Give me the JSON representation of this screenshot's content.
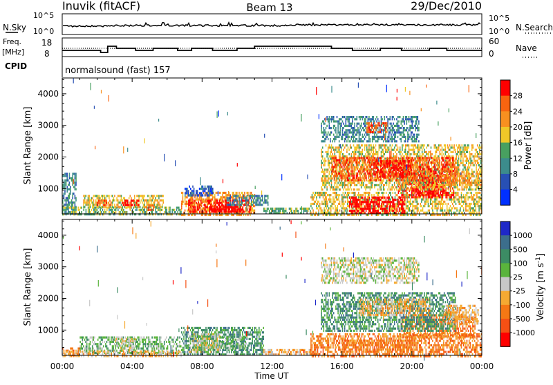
{
  "header": {
    "station": "Inuvik (fitACF)",
    "beam": "Beam 13",
    "date": "29/Dec/2010"
  },
  "sky_panel": {
    "left_label": "N.Sky",
    "right_label": "N.Search",
    "left_ticks": [
      "10^5",
      "10^0"
    ],
    "right_ticks": [
      "10^5",
      "10^0"
    ]
  },
  "freq_panel": {
    "left_label_line1": "Freq.",
    "left_label_line2": "[MHz]",
    "right_label": "Nave",
    "left_ticks": [
      "18",
      "8"
    ],
    "right_ticks": [
      "60",
      "0"
    ]
  },
  "cpid": {
    "label": "CPID",
    "program": "normalsound (fast) 157"
  },
  "chart_data": [
    {
      "type": "heatmap",
      "name": "power",
      "ylabel": "Slant Range [km]",
      "ylim": [
        200,
        4500
      ],
      "yticks": [
        "1000",
        "2000",
        "3000",
        "4000"
      ],
      "xlim": [
        0,
        24
      ],
      "xticks": [
        "00:00",
        "04:00",
        "08:00",
        "12:00",
        "16:00",
        "20:00",
        "00:00"
      ],
      "xlabel": "Time UT",
      "colorbar": {
        "label": "Power [dB]",
        "ticks": [
          "28",
          "24",
          "20",
          "16",
          "12",
          "8",
          "4"
        ],
        "colors": [
          "#ff0000",
          "#f86410",
          "#f89020",
          "#f0c828",
          "#48a060",
          "#3c8c8c",
          "#2850b4",
          "#0030ff"
        ]
      },
      "regions": [
        {
          "t0": 0.0,
          "t1": 0.8,
          "r0": 200,
          "r1": 1500,
          "level": 2
        },
        {
          "t0": 0.0,
          "t1": 6.8,
          "r0": 200,
          "r1": 430,
          "level": 3
        },
        {
          "t0": 1.2,
          "t1": 5.8,
          "r0": 430,
          "r1": 800,
          "level": 4
        },
        {
          "t0": 2.0,
          "t1": 2.8,
          "r0": 450,
          "r1": 650,
          "level": 6
        },
        {
          "t0": 3.4,
          "t1": 4.4,
          "r0": 450,
          "r1": 650,
          "level": 7
        },
        {
          "t0": 4.8,
          "t1": 5.2,
          "r0": 300,
          "r1": 500,
          "level": 6
        },
        {
          "t0": 6.8,
          "t1": 11.0,
          "r0": 200,
          "r1": 900,
          "level": 5
        },
        {
          "t0": 7.2,
          "t1": 10.8,
          "r0": 250,
          "r1": 650,
          "level": 7
        },
        {
          "t0": 8.4,
          "t1": 10.2,
          "r0": 250,
          "r1": 450,
          "level": 8
        },
        {
          "t0": 7.0,
          "t1": 8.6,
          "r0": 800,
          "r1": 1100,
          "level": 1
        },
        {
          "t0": 9.4,
          "t1": 11.8,
          "r0": 500,
          "r1": 800,
          "level": 2
        },
        {
          "t0": 11.5,
          "t1": 14.2,
          "r0": 200,
          "r1": 400,
          "level": 3
        },
        {
          "t0": 14.2,
          "t1": 24.0,
          "r0": 200,
          "r1": 900,
          "level": 4
        },
        {
          "t0": 16.4,
          "t1": 19.6,
          "r0": 250,
          "r1": 750,
          "level": 8
        },
        {
          "t0": 19.2,
          "t1": 22.4,
          "r0": 700,
          "r1": 1600,
          "level": 7
        },
        {
          "t0": 20.2,
          "t1": 21.8,
          "r0": 750,
          "r1": 1300,
          "level": 8
        },
        {
          "t0": 14.8,
          "t1": 24.0,
          "r0": 1000,
          "r1": 2400,
          "level": 4
        },
        {
          "t0": 15.4,
          "t1": 22.6,
          "r0": 1300,
          "r1": 2000,
          "level": 6
        },
        {
          "t0": 17.8,
          "t1": 20.0,
          "r0": 1400,
          "r1": 1900,
          "level": 7
        },
        {
          "t0": 14.8,
          "t1": 20.4,
          "r0": 2500,
          "r1": 3300,
          "level": 2
        },
        {
          "t0": 17.4,
          "t1": 18.6,
          "r0": 2800,
          "r1": 3100,
          "level": 6
        },
        {
          "t0": 22.0,
          "t1": 24.0,
          "r0": 1100,
          "r1": 1500,
          "level": 5
        }
      ]
    },
    {
      "type": "heatmap",
      "name": "velocity",
      "ylabel": "Slant Range [km]",
      "ylim": [
        200,
        4500
      ],
      "yticks": [
        "1000",
        "2000",
        "3000",
        "4000"
      ],
      "xlim": [
        0,
        24
      ],
      "xticks": [
        "00:00",
        "04:00",
        "08:00",
        "12:00",
        "16:00",
        "20:00",
        "00:00"
      ],
      "xlabel": "Time UT",
      "colorbar": {
        "label": "Velocity [m s^-1]",
        "ticks": [
          "1000",
          "500",
          "100",
          "25",
          "-25",
          "-100",
          "-500",
          "-1000"
        ],
        "colors": [
          "#1e28c8",
          "#3c6e8c",
          "#3c8c64",
          "#5ab43c",
          "#c8c8c8",
          "#f5aa32",
          "#f57814",
          "#f55014",
          "#ff0000"
        ]
      },
      "regions": [
        {
          "t0": 0.0,
          "t1": 1.0,
          "r0": 200,
          "r1": 450,
          "level": 6
        },
        {
          "t0": 1.0,
          "t1": 6.8,
          "r0": 250,
          "r1": 800,
          "level": 3
        },
        {
          "t0": 0.0,
          "t1": 6.8,
          "r0": 200,
          "r1": 350,
          "level": 5
        },
        {
          "t0": 3.0,
          "t1": 4.2,
          "r0": 400,
          "r1": 750,
          "level": 4
        },
        {
          "t0": 6.8,
          "t1": 11.5,
          "r0": 200,
          "r1": 1100,
          "level": 2
        },
        {
          "t0": 7.2,
          "t1": 9.0,
          "r0": 300,
          "r1": 900,
          "level": 4
        },
        {
          "t0": 9.0,
          "t1": 10.5,
          "r0": 400,
          "r1": 800,
          "level": 3
        },
        {
          "t0": 11.5,
          "t1": 14.5,
          "r0": 200,
          "r1": 400,
          "level": 5
        },
        {
          "t0": 14.2,
          "t1": 24.0,
          "r0": 200,
          "r1": 900,
          "level": 6
        },
        {
          "t0": 16.0,
          "t1": 20.0,
          "r0": 300,
          "r1": 700,
          "level": 6
        },
        {
          "t0": 19.4,
          "t1": 23.6,
          "r0": 800,
          "r1": 1500,
          "level": 6
        },
        {
          "t0": 14.8,
          "t1": 22.5,
          "r0": 1000,
          "r1": 2200,
          "level": 2
        },
        {
          "t0": 17.0,
          "t1": 21.0,
          "r0": 1500,
          "r1": 2000,
          "level": 5
        },
        {
          "t0": 14.8,
          "t1": 20.4,
          "r0": 2500,
          "r1": 3300,
          "level": 4
        },
        {
          "t0": 21.8,
          "t1": 23.8,
          "r0": 1200,
          "r1": 1800,
          "level": 5
        }
      ]
    }
  ],
  "colors": {
    "axis": "#000000",
    "line": "#000000"
  }
}
